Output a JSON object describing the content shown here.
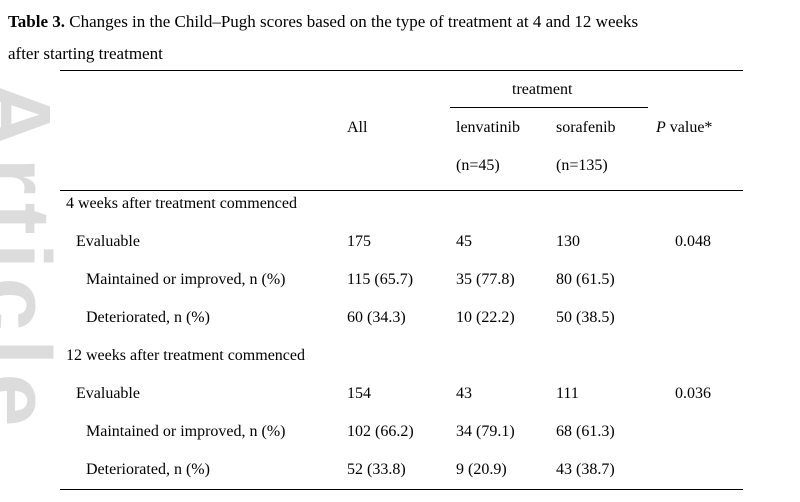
{
  "caption": {
    "label": "Table 3.",
    "text_line1": " Changes in the Child–Pugh scores based on the type of treatment at 4 and 12 weeks",
    "text_line2": "after starting treatment"
  },
  "watermark": "Article",
  "headers": {
    "treatment_group": "treatment",
    "all": "All",
    "lenvatinib": "lenvatinib",
    "lenvatinib_n": "(n=45)",
    "sorafenib": "sorafenib",
    "sorafenib_n": "(n=135)",
    "p_italic": "P",
    "p_rest": " value*"
  },
  "sections": [
    {
      "title": "4 weeks after treatment commenced",
      "rows": [
        {
          "label": "Evaluable",
          "all": "175",
          "lenvatinib": "45",
          "sorafenib": "130",
          "p": "0.048"
        },
        {
          "label": "Maintained or improved, n (%)",
          "all": "115 (65.7)",
          "lenvatinib": "35 (77.8)",
          "sorafenib": "80 (61.5)",
          "p": ""
        },
        {
          "label": "Deteriorated, n (%)",
          "all": "60 (34.3)",
          "lenvatinib": "10 (22.2)",
          "sorafenib": "50 (38.5)",
          "p": ""
        }
      ]
    },
    {
      "title": "12 weeks after treatment commenced",
      "rows": [
        {
          "label": "Evaluable",
          "all": "154",
          "lenvatinib": "43",
          "sorafenib": "111",
          "p": "0.036"
        },
        {
          "label": "Maintained or improved, n (%)",
          "all": "102 (66.2)",
          "lenvatinib": "34 (79.1)",
          "sorafenib": "68 (61.3)",
          "p": ""
        },
        {
          "label": "Deteriorated, n (%)",
          "all": "52 (33.8)",
          "lenvatinib": "9 (20.9)",
          "sorafenib": "43 (38.7)",
          "p": ""
        }
      ]
    }
  ]
}
